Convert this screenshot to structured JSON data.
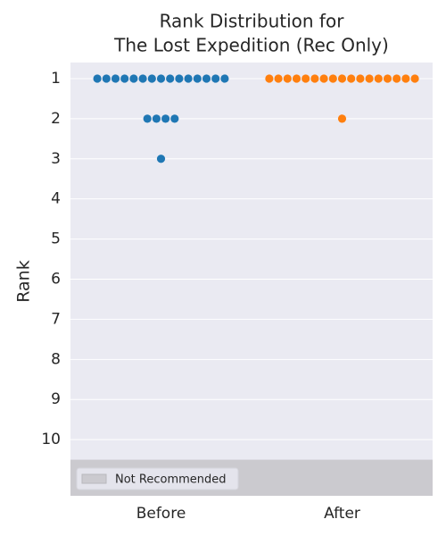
{
  "chart_data": {
    "type": "swarm",
    "title": [
      "Rank Distribution for",
      "The Lost Expedition (Rec Only)"
    ],
    "ylabel": "Rank",
    "series": [
      {
        "name": "Before",
        "color": "#1f77b4",
        "values": [
          1,
          1,
          1,
          1,
          1,
          1,
          1,
          1,
          1,
          1,
          1,
          1,
          1,
          1,
          1,
          2,
          2,
          2,
          2,
          3
        ]
      },
      {
        "name": "After",
        "color": "#ff7f0e",
        "values": [
          1,
          1,
          1,
          1,
          1,
          1,
          1,
          1,
          1,
          1,
          1,
          1,
          1,
          1,
          1,
          1,
          1,
          2
        ]
      }
    ],
    "ylim": [
      0.6,
      11.4
    ],
    "y_inverted": true,
    "yticks": [
      1,
      2,
      3,
      4,
      5,
      6,
      7,
      8,
      9,
      10
    ],
    "grid": true,
    "shaded_region": {
      "from": 10.5,
      "to": 11.4,
      "color": "#cbcacf",
      "label": "Not Recommended"
    },
    "legend": "lower left"
  }
}
